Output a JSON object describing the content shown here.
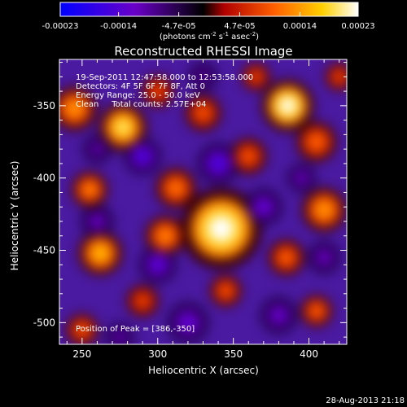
{
  "colorbar": {
    "ticks": [
      "-0.00023",
      "-0.00014",
      "-4.7e-05",
      "4.7e-05",
      "0.00014",
      "0.00023"
    ],
    "tick_values": [
      -0.00023,
      -0.00014,
      -4.7e-05,
      4.7e-05,
      0.00014,
      0.00023
    ],
    "range": [
      -0.00023,
      0.00023
    ],
    "units_label": "(photons cm",
    "units_exp1": "-2",
    "units_mid": " s",
    "units_exp2": "-1",
    "units_tail": " asec",
    "units_exp3": "-2",
    "units_close": ")",
    "colors": [
      "#0000ff",
      "#6a00c8",
      "#000000",
      "#b00000",
      "#ff6000",
      "#ffd000",
      "#ffffff"
    ]
  },
  "chart_data": {
    "type": "heatmap",
    "title": "Reconstructed RHESSI Image",
    "xlabel": "Heliocentric X (arcsec)",
    "ylabel": "Heliocentric Y (arcsec)",
    "xlim": [
      235,
      425
    ],
    "ylim": [
      -515,
      -318
    ],
    "xticks": [
      250,
      300,
      350,
      400
    ],
    "yticks": [
      -350,
      -400,
      -450,
      -500
    ],
    "info_lines": [
      "19-Sep-2011 12:47:58.000 to 12:53:58.000",
      "Detectors: 4F 5F 6F 7F 8F, Att 0",
      "Energy Range: 25.0 - 50.0 keV",
      "Clean     Total counts: 2.57E+04"
    ],
    "peak_label": "Position of Peak = [386,-350]",
    "peak_position": [
      386,
      -350
    ],
    "value_range": [
      -0.00023,
      0.00023
    ],
    "blobs": [
      {
        "x": 342,
        "y": -435,
        "r": 20,
        "v": 1.0
      },
      {
        "x": 386,
        "y": -350,
        "r": 13,
        "v": 1.0
      },
      {
        "x": 277,
        "y": -365,
        "r": 12,
        "v": 0.85
      },
      {
        "x": 245,
        "y": -352,
        "r": 11,
        "v": 0.6
      },
      {
        "x": 262,
        "y": -452,
        "r": 11,
        "v": 0.7
      },
      {
        "x": 305,
        "y": -440,
        "r": 10,
        "v": 0.55
      },
      {
        "x": 312,
        "y": -407,
        "r": 10,
        "v": 0.5
      },
      {
        "x": 410,
        "y": -422,
        "r": 11,
        "v": 0.6
      },
      {
        "x": 405,
        "y": -375,
        "r": 10,
        "v": 0.45
      },
      {
        "x": 385,
        "y": -455,
        "r": 9,
        "v": 0.45
      },
      {
        "x": 330,
        "y": -355,
        "r": 9,
        "v": 0.4
      },
      {
        "x": 255,
        "y": -408,
        "r": 9,
        "v": 0.55
      },
      {
        "x": 360,
        "y": -385,
        "r": 9,
        "v": 0.4
      },
      {
        "x": 290,
        "y": -485,
        "r": 8,
        "v": 0.35
      },
      {
        "x": 345,
        "y": -478,
        "r": 8,
        "v": 0.4
      },
      {
        "x": 405,
        "y": -492,
        "r": 8,
        "v": 0.45
      },
      {
        "x": 250,
        "y": -505,
        "r": 8,
        "v": 0.4
      },
      {
        "x": 300,
        "y": -340,
        "r": 8,
        "v": 0.35
      },
      {
        "x": 365,
        "y": -330,
        "r": 7,
        "v": 0.35
      },
      {
        "x": 420,
        "y": -330,
        "r": 7,
        "v": 0.35
      },
      {
        "x": 290,
        "y": -385,
        "r": 9,
        "v": -0.7
      },
      {
        "x": 340,
        "y": -390,
        "r": 10,
        "v": -0.7
      },
      {
        "x": 370,
        "y": -420,
        "r": 9,
        "v": -0.6
      },
      {
        "x": 300,
        "y": -460,
        "r": 9,
        "v": -0.65
      },
      {
        "x": 260,
        "y": -430,
        "r": 8,
        "v": -0.5
      },
      {
        "x": 320,
        "y": -500,
        "r": 10,
        "v": -0.6
      },
      {
        "x": 380,
        "y": -495,
        "r": 9,
        "v": -0.55
      },
      {
        "x": 410,
        "y": -455,
        "r": 8,
        "v": -0.5
      },
      {
        "x": 260,
        "y": -380,
        "r": 7,
        "v": -0.45
      },
      {
        "x": 395,
        "y": -400,
        "r": 7,
        "v": -0.5
      },
      {
        "x": 330,
        "y": -330,
        "r": 7,
        "v": -0.4
      },
      {
        "x": 275,
        "y": -510,
        "r": 7,
        "v": -0.45
      }
    ]
  },
  "footer_date": "28-Aug-2013 21:18"
}
